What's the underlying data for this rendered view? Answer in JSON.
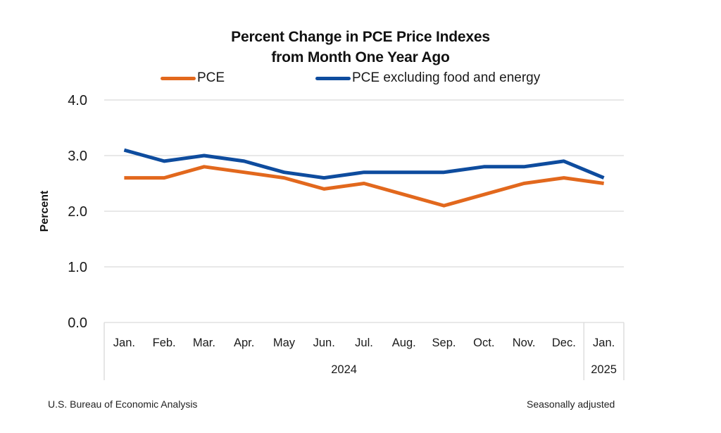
{
  "chart_data": {
    "type": "line",
    "title": [
      "Percent Change in PCE Price Indexes",
      "from Month One Year Ago"
    ],
    "xlabel": "",
    "ylabel": "Percent",
    "ylim": [
      0,
      4
    ],
    "yticks": [
      "0.0",
      "1.0",
      "2.0",
      "3.0",
      "4.0"
    ],
    "ytick_values": [
      0,
      1,
      2,
      3,
      4
    ],
    "grid": true,
    "legend_position": "top",
    "categories": [
      "Jan.",
      "Feb.",
      "Mar.",
      "Apr.",
      "May",
      "Jun.",
      "Jul.",
      "Aug.",
      "Sep.",
      "Oct.",
      "Nov.",
      "Dec.",
      "Jan."
    ],
    "year_groups": [
      {
        "label": "2024",
        "count": 12
      },
      {
        "label": "2025",
        "count": 1
      }
    ],
    "series": [
      {
        "name": "PCE",
        "color": "#E2681D",
        "values": [
          2.6,
          2.6,
          2.8,
          2.7,
          2.6,
          2.4,
          2.5,
          2.3,
          2.1,
          2.3,
          2.5,
          2.6,
          2.5
        ]
      },
      {
        "name": "PCE excluding food and energy",
        "color": "#0E4C9E",
        "values": [
          3.1,
          2.9,
          3.0,
          2.9,
          2.7,
          2.6,
          2.7,
          2.7,
          2.7,
          2.8,
          2.8,
          2.9,
          2.6
        ]
      }
    ]
  },
  "footer": {
    "source": "U.S. Bureau of Economic Analysis",
    "note": "Seasonally adjusted"
  }
}
